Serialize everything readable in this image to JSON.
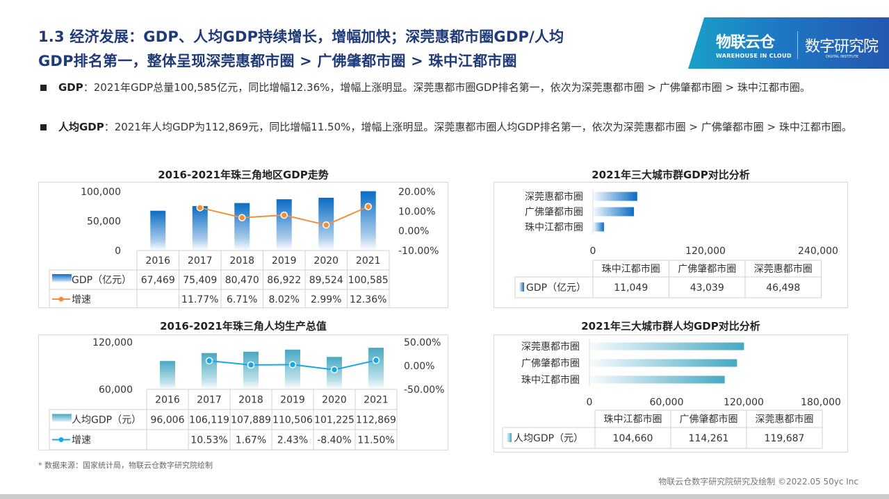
{
  "header": {
    "title_line1": "1.3 经济发展：GDP、人均GDP持续增长，增幅加快；深莞惠都市圈GDP/人均",
    "title_line2": "GDP排名第一，整体呈现深莞惠都市圈 > 广佛肇都市圈 > 珠中江都市圈",
    "logo": {
      "brand": "物联云仓",
      "brand_en": "WAREHOUSE IN CLOUD",
      "institute": "数字研究院",
      "institute_en": "DIGITAL INSTITUTE"
    }
  },
  "bullets": [
    {
      "label": "GDP",
      "text": "：2021年GDP总量100,585亿元，同比增幅12.36%，增幅上涨明显。深莞惠都市圈GDP排名第一，依次为深莞惠都市圈 > 广佛肇都市圈 > 珠中江都市圈。"
    },
    {
      "label": "人均GDP",
      "text": "：2021年人均GDP为112,869元，同比增幅11.50%，增幅上涨明显。深莞惠都市圈人均GDP排名第一，依次为深莞惠都市圈 > 广佛肇都市圈 > 珠中江都市圈。"
    }
  ],
  "chart_data": [
    {
      "type": "bar+line",
      "title": "2016-2021年珠三角地区GDP走势",
      "categories": [
        "2016",
        "2017",
        "2018",
        "2019",
        "2020",
        "2021"
      ],
      "series": [
        {
          "name": "GDP（亿元）",
          "type": "bar",
          "axis": "left",
          "values": [
            67469,
            75409,
            80470,
            86922,
            89524,
            100585
          ],
          "labels": [
            "67,469",
            "75,409",
            "80,470",
            "86,922",
            "89,524",
            "100,585"
          ],
          "color": "#0a6cc4"
        },
        {
          "name": "增速",
          "type": "line",
          "axis": "right",
          "values": [
            null,
            11.77,
            6.71,
            8.02,
            2.99,
            12.36
          ],
          "labels": [
            "",
            "11.77%",
            "6.71%",
            "8.02%",
            "2.99%",
            "12.36%"
          ],
          "color": "#f0913a"
        }
      ],
      "y_left": {
        "range": [
          0,
          100000
        ],
        "ticks": [
          "100,000",
          "50,000",
          "0"
        ]
      },
      "y_right": {
        "range": [
          -10,
          20
        ],
        "ticks": [
          "20.00%",
          "10.00%",
          "0.00%",
          "-10.00%"
        ]
      },
      "data_table": true
    },
    {
      "type": "bar+line",
      "title": "2016-2021年珠三角人均生产总值",
      "categories": [
        "2016",
        "2017",
        "2018",
        "2019",
        "2020",
        "2021"
      ],
      "series": [
        {
          "name": "人均GDP（元）",
          "type": "bar",
          "axis": "left",
          "values": [
            96006,
            106119,
            107889,
            110506,
            101225,
            112869
          ],
          "labels": [
            "96,006",
            "106,119",
            "107,889",
            "110,506",
            "101,225",
            "112,869"
          ],
          "color": "#46a8c2"
        },
        {
          "name": "增速",
          "type": "line",
          "axis": "right",
          "values": [
            null,
            10.53,
            1.67,
            2.43,
            -8.4,
            11.5
          ],
          "labels": [
            "",
            "10.53%",
            "1.67%",
            "2.43%",
            "-8.40%",
            "11.50%"
          ],
          "color": "#18a6e6"
        }
      ],
      "y_left": {
        "range": [
          60000,
          120000
        ],
        "ticks": [
          "120,000",
          "60,000"
        ]
      },
      "y_right": {
        "range": [
          -50,
          50
        ],
        "ticks": [
          "50.00%",
          "0.00%",
          "-50.00%"
        ]
      },
      "data_table": true
    },
    {
      "type": "bar",
      "orientation": "horizontal",
      "title": "2021年三大城市群GDP对比分析",
      "categories": [
        "珠中江都市圈",
        "广佛肇都市圈",
        "深莞惠都市圈"
      ],
      "series": [
        {
          "name": "GDP（亿元）",
          "values": [
            11049,
            43039,
            46498
          ],
          "labels": [
            "11,049",
            "43,039",
            "46,498"
          ],
          "color": "#0a6cc4"
        }
      ],
      "x_axis": {
        "range": [
          0,
          240000
        ],
        "ticks": [
          "0",
          "120,000",
          "240,000"
        ]
      },
      "data_table": true
    },
    {
      "type": "bar",
      "orientation": "horizontal",
      "title": "2021年三大城市群人均GDP对比分析",
      "categories": [
        "珠中江都市圈",
        "广佛肇都市圈",
        "深莞惠都市圈"
      ],
      "series": [
        {
          "name": "人均GDP（元）",
          "values": [
            104660,
            114261,
            119687
          ],
          "labels": [
            "104,660",
            "114,261",
            "119,687"
          ],
          "color": "#46a8c2"
        }
      ],
      "x_axis": {
        "range": [
          0,
          180000
        ],
        "ticks": [
          "0",
          "60,000",
          "120,000",
          "180,000"
        ]
      },
      "data_table": true
    }
  ],
  "footer": {
    "source_note": "* 数据来源：国家统计局，物联云仓数字研究院绘制",
    "credit": "物联云仓数字研究院研究及绘制    ©2022.05 50yc Inc"
  }
}
